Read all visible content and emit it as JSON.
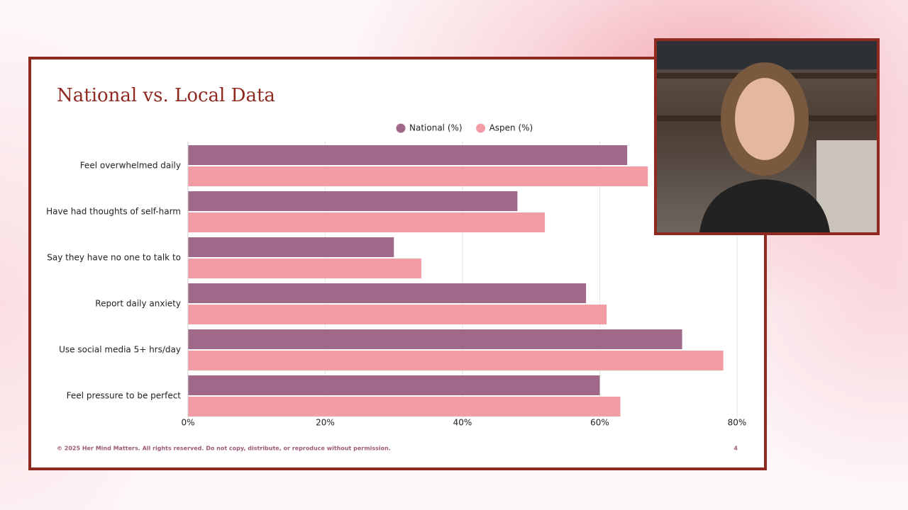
{
  "chart_data": {
    "type": "bar",
    "orientation": "horizontal",
    "title": "National vs. Local Data",
    "categories": [
      "Feel overwhelmed daily",
      "Have had thoughts of self-harm",
      "Say they have no one to talk to",
      "Report daily anxiety",
      "Use social media 5+ hrs/day",
      "Feel pressure to be perfect"
    ],
    "series": [
      {
        "name": "National (%)",
        "color": "#a0698a",
        "values": [
          64,
          48,
          30,
          58,
          72,
          60
        ]
      },
      {
        "name": "Aspen (%)",
        "color": "#f29ca6",
        "values": [
          67,
          52,
          34,
          61,
          78,
          63
        ]
      }
    ],
    "xlim": [
      0,
      80
    ],
    "xticks": [
      {
        "value": 0,
        "label": "0%"
      },
      {
        "value": 20,
        "label": "20%"
      },
      {
        "value": 40,
        "label": "40%"
      },
      {
        "value": 60,
        "label": "60%"
      },
      {
        "value": 80,
        "label": "80%"
      }
    ],
    "grid": true,
    "legend": "top"
  },
  "footer": "© 2025 Her Mind Matters. All rights reserved. Do not copy, distribute, or reproduce without permission.",
  "page_number": 4
}
